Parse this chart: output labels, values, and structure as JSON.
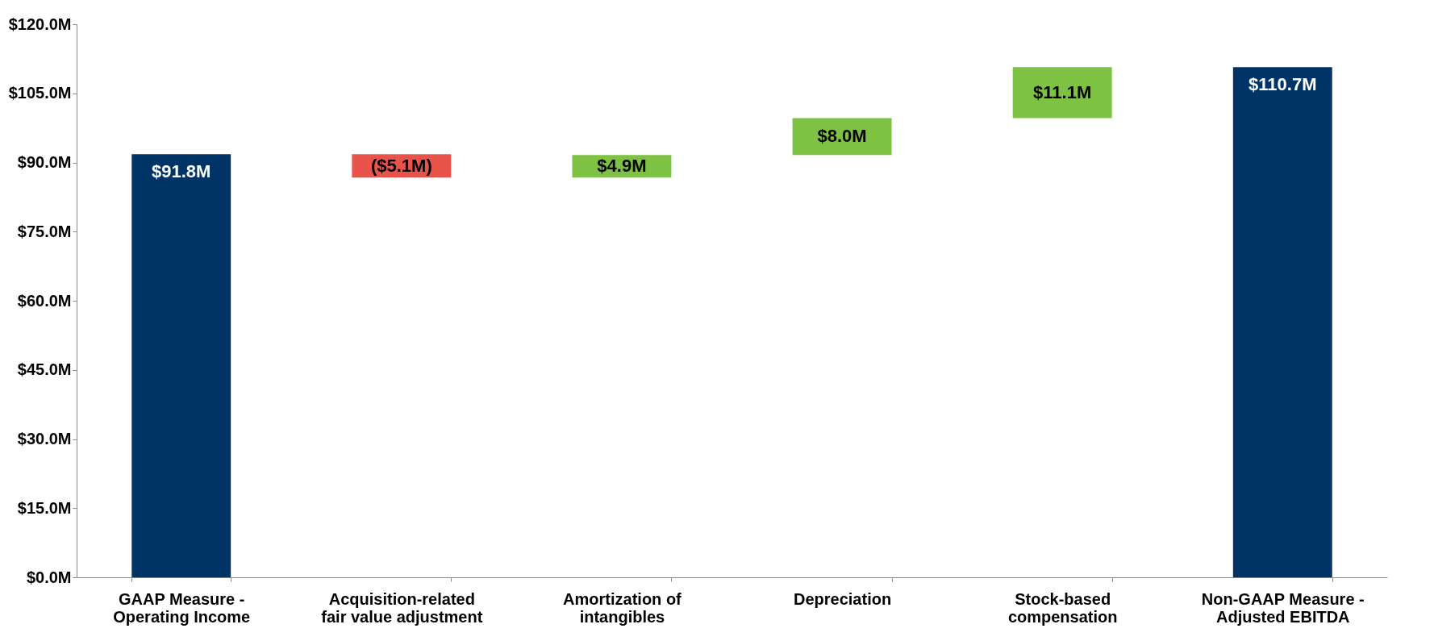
{
  "chart_data": {
    "type": "bar",
    "categories": [
      "GAAP Measure -\nOperating Income",
      "Acquisition-related\nfair value adjustment",
      "Amortization of\nintangibles",
      "Depreciation",
      "Stock-based\ncompensation",
      "Non-GAAP Measure -\nAdjusted EBITDA"
    ],
    "values": [
      91.8,
      -5.1,
      4.9,
      8.0,
      11.1,
      110.7
    ],
    "base": [
      0,
      91.8,
      86.7,
      91.6,
      99.6,
      0
    ],
    "colors": [
      "#003366",
      "#e8534a",
      "#7dc242",
      "#7dc242",
      "#7dc242",
      "#003366"
    ],
    "value_labels": [
      "$91.8M",
      "($5.1M)",
      "$4.9M",
      "$8.0M",
      "$11.1M",
      "$110.7M"
    ],
    "ylim": [
      0,
      120
    ],
    "yticks": [
      {
        "value": 0,
        "label": "$0.0M"
      },
      {
        "value": 15,
        "label": "$15.0M"
      },
      {
        "value": 30,
        "label": "$30.0M"
      },
      {
        "value": 45,
        "label": "$45.0M"
      },
      {
        "value": 60,
        "label": "$60.0M"
      },
      {
        "value": 75,
        "label": "$75.0M"
      },
      {
        "value": 90,
        "label": "$90.0M"
      },
      {
        "value": 105,
        "label": "$105.0M"
      },
      {
        "value": 120,
        "label": "$120.0M"
      }
    ],
    "grid": false
  }
}
